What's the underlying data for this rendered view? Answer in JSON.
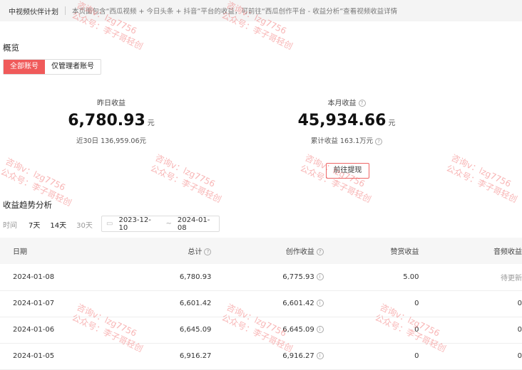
{
  "header": {
    "title": "中视频伙伴计划",
    "description": "本页面包含“西瓜视频 + 今日头条 + 抖音”平台的收益，可前往“西瓜创作平台 - 收益分析”查看视频收益详情"
  },
  "overview": {
    "title": "概览",
    "tabs": [
      {
        "label": "全部账号",
        "active": true
      },
      {
        "label": "仅管理者账号",
        "active": false
      }
    ],
    "yesterday": {
      "label": "昨日收益",
      "value": "6,780.93",
      "unit": "元",
      "sub": "近30日 136,959.06元"
    },
    "month": {
      "label": "本月收益",
      "value": "45,934.66",
      "unit": "元",
      "sub": "累计收益 163.1万元"
    },
    "withdraw_label": "前往提现"
  },
  "trend": {
    "title": "收益趋势分析",
    "time_label": "时间",
    "ranges": [
      "7天",
      "14天",
      "30天"
    ],
    "selected_range": "30天",
    "date_start": "2023-12-10",
    "date_sep": "~",
    "date_end": "2024-01-08"
  },
  "table": {
    "headers": [
      "日期",
      "总计",
      "创作收益",
      "赞赏收益",
      "音频收益"
    ],
    "rows": [
      [
        "2024-01-08",
        "6,780.93",
        "6,775.93",
        "5.00",
        "待更新"
      ],
      [
        "2024-01-07",
        "6,601.42",
        "6,601.42",
        "0",
        "0"
      ],
      [
        "2024-01-06",
        "6,645.09",
        "6,645.09",
        "0",
        "0"
      ],
      [
        "2024-01-05",
        "6,916.27",
        "6,916.27",
        "0",
        "0"
      ]
    ]
  },
  "watermark": {
    "line1": "咨询v：lzg7756",
    "line2": "公众号：李子哥轻创"
  },
  "colors": {
    "accent": "#f05a5a"
  }
}
